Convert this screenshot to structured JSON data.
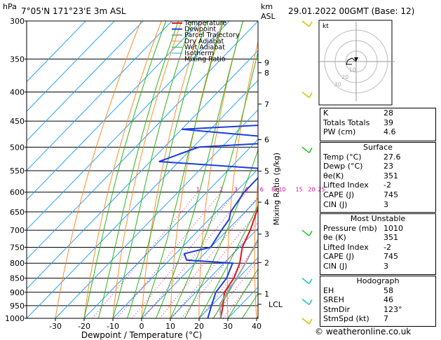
{
  "header": {
    "pressure_unit": "hPa",
    "location": "7°05'N  171°23'E  3m  ASL",
    "height_unit_top": "km",
    "height_unit_bottom": "ASL",
    "datetime": "29.01.2022  00GMT  (Base: 12)"
  },
  "chart_data": {
    "type": "line",
    "title": "Skew-T log-P diagram",
    "xlabel": "Dewpoint / Temperature (°C)",
    "ylabel": "hPa",
    "y2label": "Mixing Ratio (g/kg)",
    "pressure_levels": [
      300,
      350,
      400,
      450,
      500,
      550,
      600,
      650,
      700,
      750,
      800,
      850,
      900,
      950,
      1000
    ],
    "temp_ticks": [
      -30,
      -20,
      -10,
      0,
      10,
      20,
      30,
      40
    ],
    "xlim": [
      -35,
      40
    ],
    "ylim": [
      1000,
      300
    ],
    "km_ticks": [
      {
        "label": "9",
        "p": 355
      },
      {
        "label": "8",
        "p": 370
      },
      {
        "label": "7",
        "p": 420
      },
      {
        "label": "6",
        "p": 485
      },
      {
        "label": "5",
        "p": 551
      },
      {
        "label": "4",
        "p": 625
      },
      {
        "label": "3",
        "p": 711
      },
      {
        "label": "2",
        "p": 798
      },
      {
        "label": "1",
        "p": 906
      }
    ],
    "lcl": {
      "label": "LCL",
      "p": 945
    },
    "mixing_ratio_labels": [
      "1",
      "2",
      "3",
      "4",
      "6",
      "8",
      "10",
      "15",
      "20",
      "25"
    ],
    "mixing_ratio_values": [
      1,
      2,
      3,
      4,
      6,
      8,
      10,
      15,
      20,
      25
    ],
    "legend": [
      "Temperature",
      "Dewpoint",
      "Parcel Trajectory",
      "Dry Adiabat",
      "Wet Adiabat",
      "Isotherm",
      "Mixing Ratio"
    ],
    "series": [
      {
        "name": "Temperature",
        "color": "#e0141e",
        "points": [
          {
            "p": 1000,
            "t": 27.5
          },
          {
            "p": 950,
            "t": 24
          },
          {
            "p": 900,
            "t": 20
          },
          {
            "p": 850,
            "t": 18.5
          },
          {
            "p": 800,
            "t": 15.5
          },
          {
            "p": 750,
            "t": 11
          },
          {
            "p": 700,
            "t": 8
          },
          {
            "p": 650,
            "t": 4
          },
          {
            "p": 600,
            "t": 0
          },
          {
            "p": 550,
            "t": -3.5
          },
          {
            "p": 500,
            "t": -7
          },
          {
            "p": 450,
            "t": -11.5
          },
          {
            "p": 400,
            "t": -17.5
          },
          {
            "p": 370,
            "t": -22
          },
          {
            "p": 350,
            "t": -26
          }
        ]
      },
      {
        "name": "Dewpoint",
        "color": "#1e3cdc",
        "points": [
          {
            "p": 1000,
            "t": 23
          },
          {
            "p": 950,
            "t": 20
          },
          {
            "p": 900,
            "t": 17
          },
          {
            "p": 850,
            "t": 16
          },
          {
            "p": 800,
            "t": 13
          },
          {
            "p": 790,
            "t": -4
          },
          {
            "p": 770,
            "t": -7
          },
          {
            "p": 750,
            "t": 0
          },
          {
            "p": 700,
            "t": -2
          },
          {
            "p": 670,
            "t": -3
          },
          {
            "p": 650,
            "t": -5
          },
          {
            "p": 600,
            "t": -7
          },
          {
            "p": 560,
            "t": -7
          },
          {
            "p": 545,
            "t": -10
          },
          {
            "p": 530,
            "t": -47
          },
          {
            "p": 500,
            "t": -38
          },
          {
            "p": 490,
            "t": -10
          },
          {
            "p": 480,
            "t": -17
          },
          {
            "p": 465,
            "t": -50
          },
          {
            "p": 455,
            "t": -15
          },
          {
            "p": 440,
            "t": -18
          },
          {
            "p": 400,
            "t": -25
          },
          {
            "p": 380,
            "t": -30
          },
          {
            "p": 350,
            "t": -38
          },
          {
            "p": 330,
            "t": -38
          },
          {
            "p": 315,
            "t": -45
          },
          {
            "p": 300,
            "t": -56
          }
        ]
      },
      {
        "name": "Parcel Trajectory",
        "color": "#a0a0a0",
        "points": [
          {
            "p": 1000,
            "t": 27.5
          },
          {
            "p": 945,
            "t": 22.5
          },
          {
            "p": 900,
            "t": 21
          },
          {
            "p": 850,
            "t": 19.5
          },
          {
            "p": 800,
            "t": 17.5
          },
          {
            "p": 750,
            "t": 15
          },
          {
            "p": 700,
            "t": 12.5
          },
          {
            "p": 650,
            "t": 9.5
          },
          {
            "p": 600,
            "t": 6
          },
          {
            "p": 550,
            "t": 2
          },
          {
            "p": 500,
            "t": -3
          },
          {
            "p": 450,
            "t": -9
          },
          {
            "p": 400,
            "t": -16
          },
          {
            "p": 350,
            "t": -25
          }
        ]
      }
    ],
    "wind_barbs": [
      {
        "p": 300,
        "color": "#c8c800"
      },
      {
        "p": 400,
        "color": "#c8c800"
      },
      {
        "p": 500,
        "color": "#20c020"
      },
      {
        "p": 700,
        "color": "#20c020"
      },
      {
        "p": 850,
        "color": "#20c0c0"
      },
      {
        "p": 925,
        "color": "#20c0c0"
      },
      {
        "p": 1000,
        "color": "#c8c800"
      }
    ]
  },
  "hodograph": {
    "unit_label": "kt",
    "ring_labels": [
      "10",
      "20",
      "30"
    ]
  },
  "indices": {
    "general": [
      {
        "label": "K",
        "value": "28"
      },
      {
        "label": "Totals Totals",
        "value": "39"
      },
      {
        "label": "PW (cm)",
        "value": "4.6"
      }
    ],
    "surface_title": "Surface",
    "surface": [
      {
        "label": "Temp (°C)",
        "value": "27.6"
      },
      {
        "label": "Dewp (°C)",
        "value": "23"
      },
      {
        "label": "θe(K)",
        "value": "351"
      },
      {
        "label": "Lifted Index",
        "value": "-2"
      },
      {
        "label": "CAPE (J)",
        "value": "745"
      },
      {
        "label": "CIN (J)",
        "value": "3"
      }
    ],
    "unstable_title": "Most Unstable",
    "unstable": [
      {
        "label": "Pressure (mb)",
        "value": "1010"
      },
      {
        "label": "θe (K)",
        "value": "351"
      },
      {
        "label": "Lifted Index",
        "value": "-2"
      },
      {
        "label": "CAPE (J)",
        "value": "745"
      },
      {
        "label": "CIN (J)",
        "value": "3"
      }
    ],
    "hodo_title": "Hodograph",
    "hodo": [
      {
        "label": "EH",
        "value": "58"
      },
      {
        "label": "SREH",
        "value": "46"
      },
      {
        "label": "StmDir",
        "value": "123°"
      },
      {
        "label": "StmSpd (kt)",
        "value": "7"
      }
    ]
  },
  "footer": {
    "copyright": "© weatheronline.co.uk"
  },
  "colors": {
    "isotherm": "#28a0ff",
    "dry_adiabat": "#ff8c28",
    "wet_adiabat": "#2ab414",
    "mixing_ratio": "#e60096",
    "temperature": "#e0141e",
    "dewpoint": "#1e3cdc",
    "parcel": "#a0a0a0"
  }
}
